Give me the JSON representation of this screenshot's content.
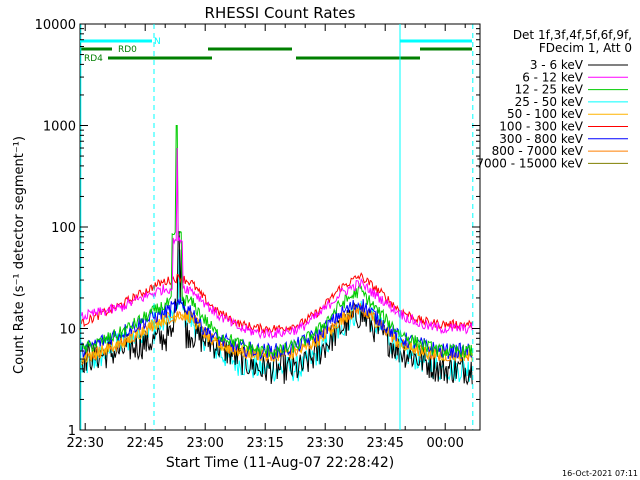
{
  "chart_data": {
    "type": "line",
    "title": "RHESSI Count Rates",
    "xlabel": "Start Time (11-Aug-07 22:28:42)",
    "ylabel": "Count Rate (s⁻¹ detector segment⁻¹)",
    "x_range_minutes_after_2228": [
      0,
      100
    ],
    "ylim": [
      1,
      10000
    ],
    "y_scale": "log",
    "grid": false,
    "x_ticks": [
      {
        "label": "22:30",
        "minute": 1.3
      },
      {
        "label": "22:45",
        "minute": 16.3
      },
      {
        "label": "23:00",
        "minute": 31.3
      },
      {
        "label": "23:15",
        "minute": 46.3
      },
      {
        "label": "23:30",
        "minute": 61.3
      },
      {
        "label": "23:45",
        "minute": 76.3
      },
      {
        "label": "00:00",
        "minute": 91.3
      }
    ],
    "y_ticks": [
      {
        "label": "1",
        "value": 1
      },
      {
        "label": "10",
        "value": 10
      },
      {
        "label": "100",
        "value": 100
      },
      {
        "label": "1000",
        "value": 1000
      },
      {
        "label": "10000",
        "value": 10000
      }
    ],
    "legend": {
      "position": "right",
      "header_line1": "Det 1f,3f,4f,5f,6f,9f,",
      "header_line2": "FDecim 1, Att 0"
    },
    "series": [
      {
        "name": "3 - 6 keV",
        "color": "#000000",
        "x": [
          0,
          10,
          20,
          25,
          28,
          30,
          34,
          40,
          45,
          50,
          55,
          60,
          65,
          70,
          75,
          80,
          85,
          90,
          98
        ],
        "y": [
          5,
          6,
          8,
          9,
          9,
          8,
          7,
          5,
          4,
          4,
          4,
          6,
          10,
          14,
          9,
          6,
          5,
          4,
          4
        ],
        "noise": 0.35,
        "spikes": [
          {
            "x": 24.7,
            "y": 90
          },
          {
            "x": 25.3,
            "y": 60
          }
        ]
      },
      {
        "name": "6 - 12 keV",
        "color": "#ff00ff",
        "x": [
          0,
          10,
          20,
          25,
          28,
          30,
          34,
          40,
          45,
          50,
          55,
          60,
          65,
          70,
          75,
          80,
          85,
          90,
          98
        ],
        "y": [
          13,
          16,
          24,
          26,
          24,
          20,
          14,
          10,
          9,
          9,
          10,
          14,
          22,
          28,
          20,
          14,
          11,
          10,
          10
        ],
        "noise": 0.12,
        "spikes": [
          {
            "x": 24.4,
            "y": 600
          }
        ]
      },
      {
        "name": "12 - 25 keV",
        "color": "#00cc00",
        "x": [
          0,
          10,
          20,
          25,
          28,
          30,
          34,
          40,
          45,
          50,
          55,
          60,
          65,
          70,
          75,
          80,
          85,
          90,
          98
        ],
        "y": [
          6,
          9,
          16,
          20,
          18,
          14,
          9,
          7,
          6,
          6,
          7,
          10,
          17,
          24,
          14,
          9,
          7,
          6,
          6
        ],
        "noise": 0.15,
        "spikes": [
          {
            "x": 24.2,
            "y": 1000
          }
        ]
      },
      {
        "name": "25 - 50 keV",
        "color": "#00ffff",
        "x": [
          0,
          10,
          20,
          25,
          28,
          30,
          34,
          40,
          45,
          50,
          55,
          60,
          65,
          70,
          75,
          80,
          85,
          90,
          98
        ],
        "y": [
          4,
          7,
          11,
          14,
          12,
          9,
          6,
          4.5,
          4,
          4,
          4,
          6,
          10,
          16,
          10,
          6,
          5,
          4,
          4
        ],
        "noise": 0.3,
        "spikes": [
          {
            "x": 24.9,
            "y": 60
          }
        ]
      },
      {
        "name": "50 - 100 keV",
        "color": "#ffb400",
        "x": [
          0,
          10,
          20,
          25,
          28,
          30,
          34,
          40,
          45,
          50,
          55,
          60,
          65,
          70,
          75,
          80,
          85,
          90,
          98
        ],
        "y": [
          5,
          7,
          12,
          14,
          13,
          10,
          7,
          6,
          5.5,
          5.5,
          6,
          8,
          12,
          16,
          11,
          7,
          6,
          5.5,
          5.5
        ],
        "noise": 0.15,
        "spikes": []
      },
      {
        "name": "100 - 300 keV",
        "color": "#ff0000",
        "x": [
          0,
          10,
          20,
          25,
          28,
          30,
          34,
          40,
          45,
          50,
          55,
          60,
          65,
          70,
          75,
          80,
          85,
          90,
          98
        ],
        "y": [
          11,
          17,
          28,
          32,
          28,
          22,
          15,
          11,
          10,
          10,
          11,
          15,
          25,
          33,
          23,
          15,
          12,
          11,
          11
        ],
        "noise": 0.1,
        "spikes": []
      },
      {
        "name": "300 - 800 keV",
        "color": "#0000ff",
        "x": [
          0,
          10,
          20,
          25,
          28,
          30,
          34,
          40,
          45,
          50,
          55,
          60,
          65,
          70,
          75,
          80,
          85,
          90,
          98
        ],
        "y": [
          6,
          9,
          14,
          17,
          15,
          11,
          8,
          6.5,
          6,
          6,
          7,
          9,
          14,
          18,
          12,
          8,
          7,
          6,
          6
        ],
        "noise": 0.18,
        "spikes": []
      },
      {
        "name": "800 - 7000 keV",
        "color": "#ff7f00",
        "x": [
          0,
          10,
          20,
          25,
          28,
          30,
          34,
          40,
          45,
          50,
          55,
          60,
          65,
          70,
          75,
          80,
          85,
          90,
          98
        ],
        "y": [
          5,
          7,
          12,
          14,
          13,
          10,
          7,
          6,
          5.5,
          5.5,
          6,
          8,
          12,
          16,
          11,
          7,
          6,
          5.5,
          5.5
        ],
        "noise": 0.15,
        "spikes": []
      },
      {
        "name": "7000 - 15000 keV",
        "color": "#7f7f00",
        "x": [
          0,
          10,
          20,
          25,
          28,
          30,
          34,
          40,
          45,
          50,
          55,
          60,
          65,
          70,
          75,
          80,
          85,
          90,
          98
        ],
        "y": [
          4.5,
          6.5,
          11,
          13,
          12,
          9,
          6.5,
          5.5,
          5,
          5,
          5.5,
          7.5,
          11,
          15,
          10,
          6.5,
          5.5,
          5,
          5
        ],
        "noise": 0.15,
        "spikes": []
      }
    ],
    "attenuator_bars": [
      {
        "label": "N",
        "color": "#00ffff",
        "segments": [
          [
            0,
            18
          ]
        ]
      },
      {
        "label": "",
        "color": "#00ffff",
        "segments": [
          [
            80,
            98
          ]
        ]
      },
      {
        "label": "RD0",
        "color": "#007f00",
        "segments": [
          [
            0,
            8
          ],
          [
            32,
            53
          ],
          [
            85,
            98
          ]
        ]
      },
      {
        "label": "RD4",
        "color": "#007f00",
        "segments": [
          [
            7,
            33
          ],
          [
            54,
            85
          ]
        ]
      }
    ],
    "solid_vlines": [
      {
        "minute": 0.2,
        "color": "#00ffff"
      },
      {
        "minute": 80,
        "color": "#00ffff"
      }
    ],
    "dashed_vlines": [
      {
        "minute": 18.5,
        "color": "#00ffff"
      },
      {
        "minute": 98.2,
        "color": "#00ffff"
      }
    ]
  },
  "footer_timestamp": "16-Oct-2021 07:11"
}
